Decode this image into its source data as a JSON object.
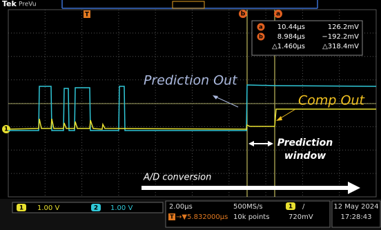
{
  "header": {
    "brand": "Tek",
    "mode": "PreVu"
  },
  "markers": {
    "trigger": "T",
    "cursor_b": "b",
    "cursor_a": "a",
    "channel1": "1"
  },
  "readout": {
    "a": {
      "label": "a",
      "time": "10.44µs",
      "voltage": "126.2mV"
    },
    "b": {
      "label": "b",
      "time": "8.984µs",
      "voltage": "−192.2mV"
    },
    "delta": {
      "time": "△1.460µs",
      "voltage": "△318.4mV"
    }
  },
  "annotations": {
    "prediction_out": "Prediction Out",
    "comp_out": "Comp Out",
    "prediction_window": [
      "Prediction",
      "window"
    ],
    "ad_conversion": "A/D conversion"
  },
  "status": {
    "ch1": {
      "badge": "1",
      "scale": "1.00 V"
    },
    "ch2": {
      "badge": "2",
      "scale": "1.00 V"
    },
    "timebase": {
      "scale": "2.00µs",
      "trigger_badge": "T",
      "delay": "→▼5.832000µs",
      "sample_rate": "500MS/s",
      "record_length": "10k points"
    },
    "trigger": {
      "source": "1",
      "slope": "/",
      "level": "720mV"
    },
    "clock": {
      "date": "12 May 2024",
      "time": "17:28:43"
    }
  }
}
